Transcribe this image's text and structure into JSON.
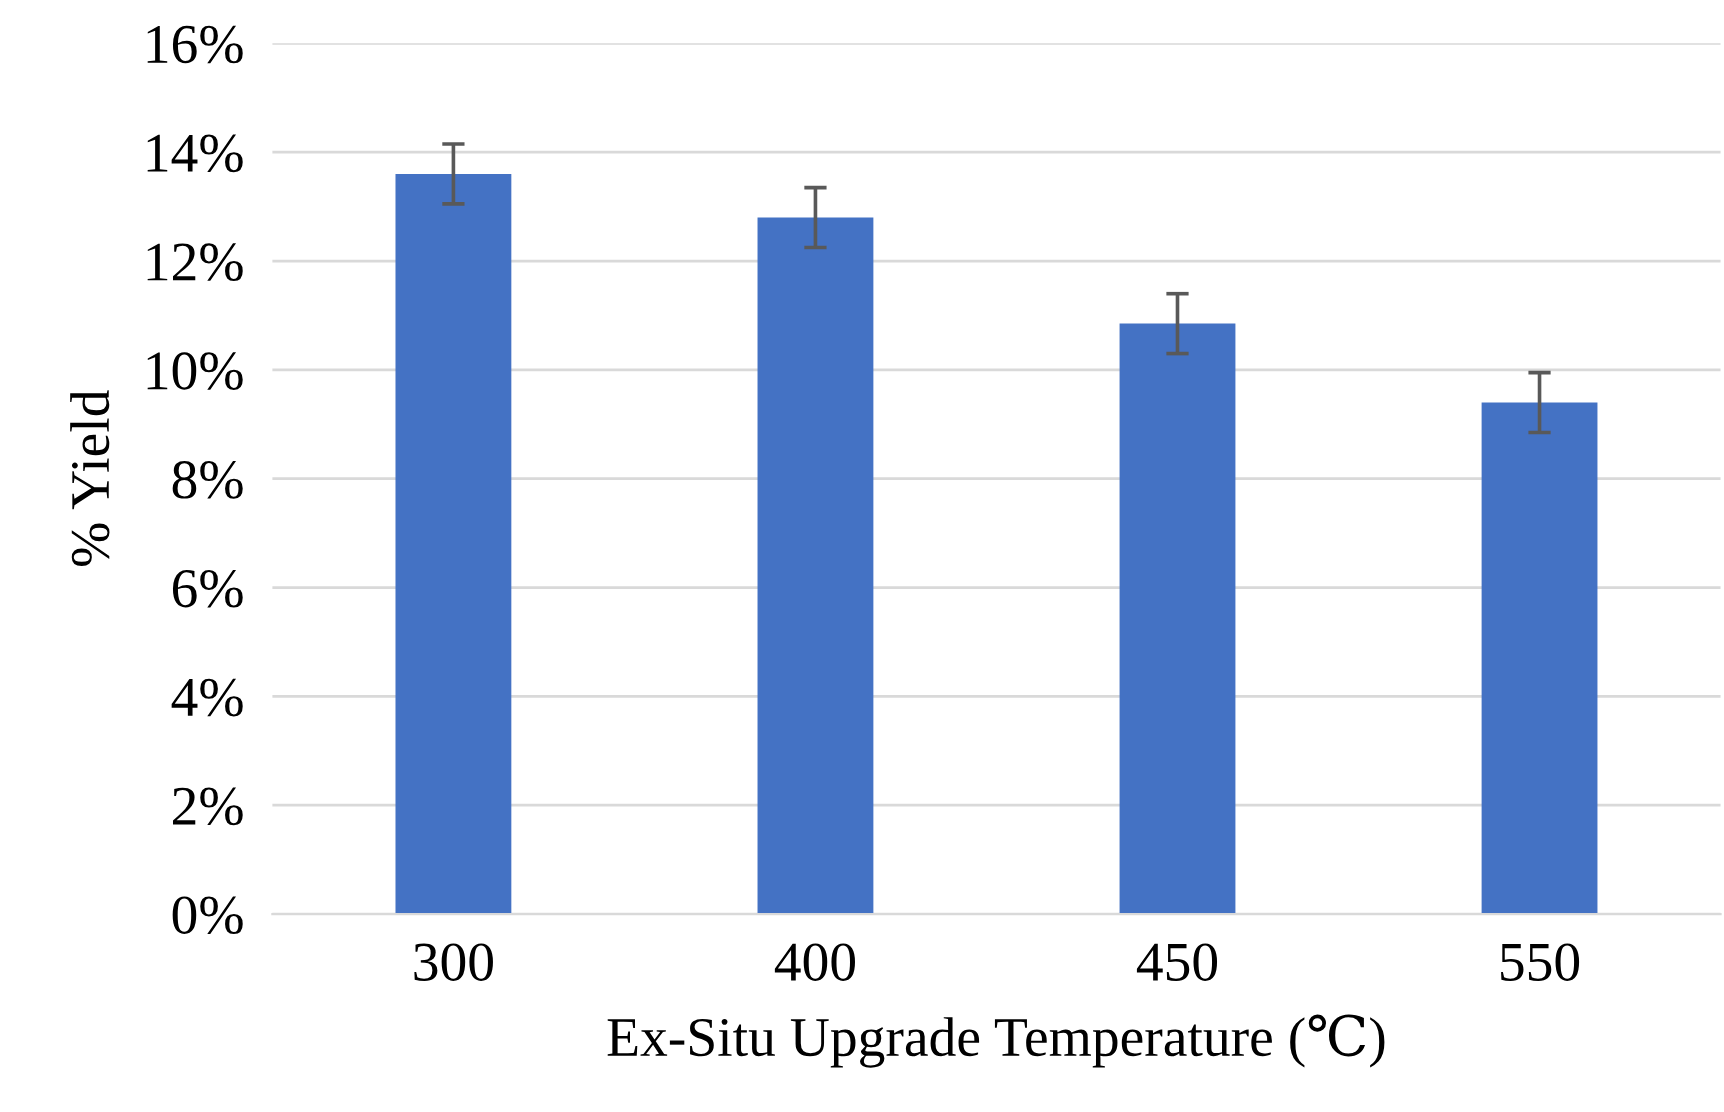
{
  "chart_data": {
    "type": "bar",
    "xlabel": "Ex-Situ Upgrade Temperature (℃)",
    "ylabel": "% Yield",
    "categories": [
      "300",
      "400",
      "450",
      "550"
    ],
    "values": [
      13.6,
      12.8,
      10.85,
      9.4
    ],
    "errors": [
      0.55,
      0.55,
      0.55,
      0.55
    ],
    "color": "#4472c4",
    "ylim": [
      0,
      16
    ],
    "yticks": [
      {
        "value": 0,
        "label": "0%"
      },
      {
        "value": 2,
        "label": "2%"
      },
      {
        "value": 4,
        "label": "4%"
      },
      {
        "value": 6,
        "label": "6%"
      },
      {
        "value": 8,
        "label": "8%"
      },
      {
        "value": 10,
        "label": "10%"
      },
      {
        "value": 12,
        "label": "12%"
      },
      {
        "value": 14,
        "label": "14%"
      },
      {
        "value": 16,
        "label": "16%"
      }
    ],
    "grid": "y"
  }
}
